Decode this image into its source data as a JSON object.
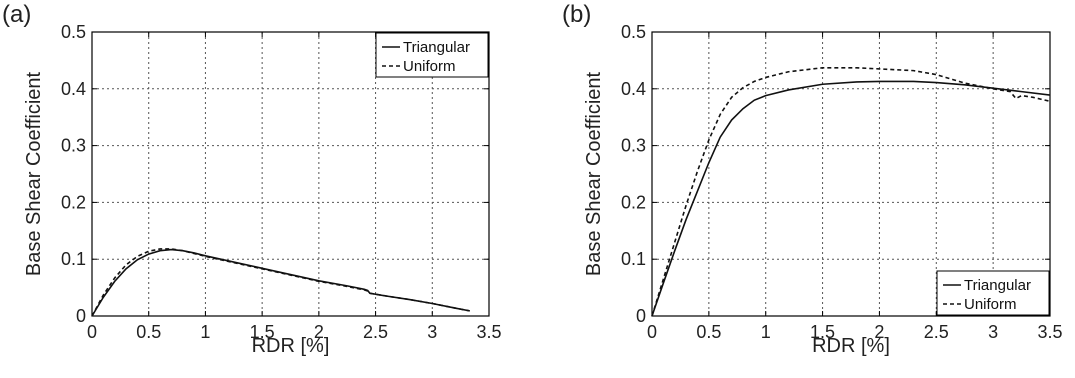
{
  "chart_data": [
    {
      "type": "line",
      "panel_label": "(a)",
      "xlabel": "RDR [%]",
      "ylabel": "Base Shear Coefficient",
      "xlim": [
        0,
        3.5
      ],
      "ylim": [
        0,
        0.5
      ],
      "xticks": [
        "0",
        "0.5",
        "1",
        "1.5",
        "2",
        "2.5",
        "3",
        "3.5"
      ],
      "yticks": [
        "0",
        "0.1",
        "0.2",
        "0.3",
        "0.4",
        "0.5"
      ],
      "grid": true,
      "legend_position": "top-right",
      "series": [
        {
          "name": "Triangular",
          "style": "solid",
          "x": [
            0,
            0.1,
            0.2,
            0.3,
            0.4,
            0.5,
            0.6,
            0.7,
            0.8,
            0.9,
            1.0,
            1.25,
            1.5,
            1.75,
            2.0,
            2.25,
            2.4,
            2.43,
            2.45,
            2.6,
            2.8,
            3.0,
            3.2,
            3.33
          ],
          "y": [
            0,
            0.033,
            0.061,
            0.083,
            0.099,
            0.109,
            0.115,
            0.117,
            0.115,
            0.111,
            0.106,
            0.095,
            0.084,
            0.073,
            0.062,
            0.053,
            0.047,
            0.045,
            0.04,
            0.035,
            0.029,
            0.022,
            0.014,
            0.009
          ]
        },
        {
          "name": "Uniform",
          "style": "dashed",
          "x": [
            0,
            0.1,
            0.2,
            0.3,
            0.4,
            0.5,
            0.6,
            0.7,
            0.8,
            0.9,
            1.0,
            1.25,
            1.5,
            1.75,
            2.0,
            2.25,
            2.4,
            2.43,
            2.45,
            2.6,
            2.8,
            3.0,
            3.2,
            3.33
          ],
          "y": [
            0,
            0.037,
            0.067,
            0.09,
            0.105,
            0.114,
            0.118,
            0.118,
            0.115,
            0.11,
            0.105,
            0.094,
            0.083,
            0.072,
            0.061,
            0.052,
            0.046,
            0.044,
            0.04,
            0.035,
            0.029,
            0.022,
            0.014,
            0.009
          ]
        }
      ]
    },
    {
      "type": "line",
      "panel_label": "(b)",
      "xlabel": "RDR [%]",
      "ylabel": "Base Shear Coefficient",
      "xlim": [
        0,
        3.5
      ],
      "ylim": [
        0,
        0.5
      ],
      "xticks": [
        "0",
        "0.5",
        "1",
        "1.5",
        "2",
        "2.5",
        "3",
        "3.5"
      ],
      "yticks": [
        "0",
        "0.1",
        "0.2",
        "0.3",
        "0.4",
        "0.5"
      ],
      "grid": true,
      "legend_position": "bottom-right",
      "series": [
        {
          "name": "Triangular",
          "style": "solid",
          "x": [
            0,
            0.1,
            0.2,
            0.3,
            0.4,
            0.5,
            0.6,
            0.7,
            0.8,
            0.9,
            1.0,
            1.2,
            1.5,
            1.8,
            2.0,
            2.3,
            2.5,
            2.75,
            3.0,
            3.25,
            3.5
          ],
          "y": [
            0,
            0.058,
            0.115,
            0.17,
            0.22,
            0.27,
            0.315,
            0.345,
            0.365,
            0.38,
            0.388,
            0.398,
            0.408,
            0.412,
            0.413,
            0.413,
            0.411,
            0.407,
            0.401,
            0.395,
            0.389
          ]
        },
        {
          "name": "Uniform",
          "style": "dashed",
          "x": [
            0,
            0.1,
            0.2,
            0.3,
            0.4,
            0.5,
            0.6,
            0.7,
            0.8,
            0.9,
            1.0,
            1.2,
            1.5,
            1.8,
            2.0,
            2.3,
            2.5,
            2.75,
            3.0,
            3.15,
            3.2,
            3.25,
            3.35,
            3.5
          ],
          "y": [
            0,
            0.065,
            0.13,
            0.195,
            0.255,
            0.31,
            0.355,
            0.385,
            0.402,
            0.413,
            0.42,
            0.43,
            0.437,
            0.437,
            0.435,
            0.432,
            0.425,
            0.41,
            0.4,
            0.395,
            0.383,
            0.388,
            0.385,
            0.378
          ]
        }
      ]
    }
  ]
}
